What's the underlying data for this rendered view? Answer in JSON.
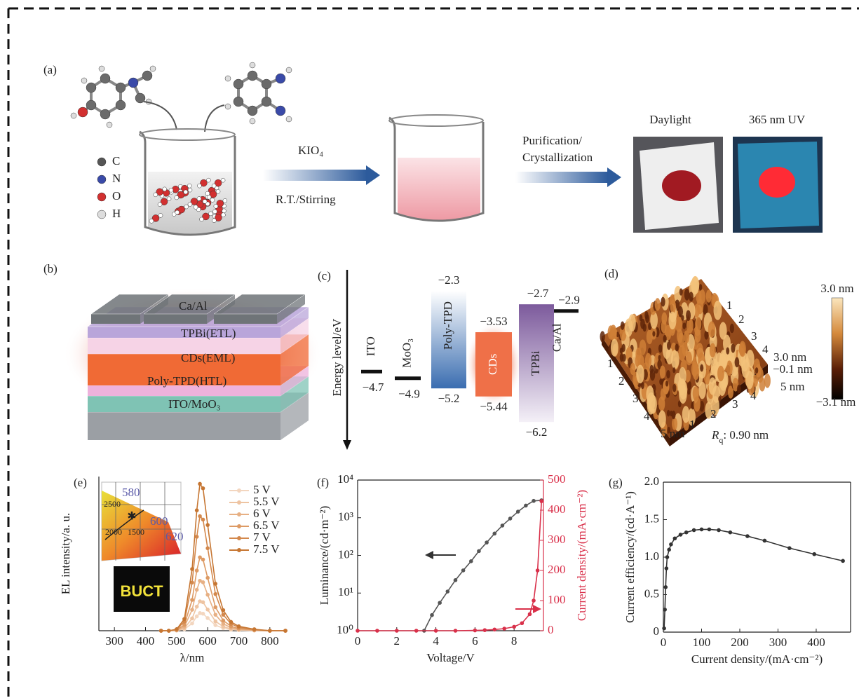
{
  "panel_a": {
    "label": "(a)",
    "legend": [
      "C",
      "N",
      "O",
      "H"
    ],
    "reagent": "KIO₄",
    "condition": "R.T./Stirring",
    "step": [
      "Purification/",
      "Crystallization"
    ],
    "photos": [
      "Daylight",
      "365 nm UV"
    ]
  },
  "panel_b": {
    "label": "(b)",
    "layers": [
      "Ca/Al",
      "TPBi(ETL)",
      "CDs(EML)",
      "Poly-TPD(HTL)",
      "ITO/MoO₃"
    ]
  },
  "panel_c": {
    "label": "(c)",
    "axis": "Energy level/eV",
    "materials": [
      {
        "name": "ITO",
        "color": "#111111",
        "levels": [
          {
            "value": -4.7,
            "label": "−4.7"
          }
        ]
      },
      {
        "name": "MoO₃",
        "color": "#111111",
        "levels": [
          {
            "value": -4.9,
            "label": "−4.9"
          }
        ]
      },
      {
        "name": "Poly-TPD",
        "color": "#3a6db0",
        "levels": [
          {
            "value": -2.3,
            "label": "−2.3"
          },
          {
            "value": -5.2,
            "label": "−5.2"
          }
        ]
      },
      {
        "name": "CDs",
        "color": "#ef7048",
        "levels": [
          {
            "value": -3.53,
            "label": "−3.53"
          },
          {
            "value": -5.44,
            "label": "−5.44"
          }
        ]
      },
      {
        "name": "TPBi",
        "color": "#7c5a9c",
        "levels": [
          {
            "value": -2.7,
            "label": "−2.7"
          },
          {
            "value": -6.2,
            "label": "−6.2"
          }
        ]
      },
      {
        "name": "Ca/Al",
        "color": "#111111",
        "levels": [
          {
            "value": -2.9,
            "label": "−2.9"
          }
        ]
      }
    ]
  },
  "panel_d": {
    "label": "(d)",
    "scale": [
      "3.0 nm",
      "−3.1 nm"
    ],
    "left_edge": [
      "1",
      "2",
      "3",
      "4",
      "5 nm"
    ],
    "front_edge": [
      "1",
      "2",
      "3",
      "4",
      "5 nm"
    ],
    "back_edge": [
      "1",
      "2",
      "3",
      "4"
    ],
    "z_ticks": [
      "3.0 nm",
      "−0.1 nm"
    ],
    "roughness": {
      "symbol": "R",
      "sub": "q",
      "text": ": 0.90 nm"
    }
  },
  "chart_data": [
    {
      "type": "line",
      "label": "(e)",
      "x_label": "λ/nm",
      "y_label": "EL intensity/a. u.",
      "xlim": [
        250,
        850
      ],
      "xticks": [
        300,
        400,
        500,
        600,
        700,
        800
      ],
      "ylim": [
        0,
        1.05
      ],
      "legend": "upper right",
      "x": [
        450,
        475,
        500,
        525,
        550,
        565,
        575,
        585,
        600,
        625,
        650,
        675,
        700,
        750,
        800,
        850
      ],
      "series": [
        {
          "name": "5 V",
          "color": "#f3d6bf",
          "values": [
            0,
            0,
            0.001,
            0.01,
            0.05,
            0.098,
            0.12,
            0.116,
            0.086,
            0.038,
            0.017,
            0.007,
            0.004,
            0.001,
            0,
            0
          ]
        },
        {
          "name": "5.5 V",
          "color": "#eec4a2",
          "values": [
            0,
            0,
            0.002,
            0.016,
            0.084,
            0.164,
            0.2,
            0.194,
            0.144,
            0.064,
            0.028,
            0.012,
            0.006,
            0.002,
            0,
            0
          ]
        },
        {
          "name": "6 V",
          "color": "#e7b084",
          "values": [
            0,
            0,
            0.003,
            0.027,
            0.143,
            0.279,
            0.34,
            0.33,
            0.245,
            0.109,
            0.048,
            0.02,
            0.01,
            0.003,
            0,
            0
          ]
        },
        {
          "name": "6.5 V",
          "color": "#dd9a64",
          "values": [
            0,
            0,
            0.005,
            0.04,
            0.21,
            0.41,
            0.5,
            0.485,
            0.36,
            0.16,
            0.07,
            0.03,
            0.015,
            0.005,
            0,
            0
          ]
        },
        {
          "name": "7 V",
          "color": "#d3884c",
          "values": [
            0,
            0,
            0.008,
            0.062,
            0.328,
            0.64,
            0.78,
            0.757,
            0.562,
            0.25,
            0.109,
            0.047,
            0.023,
            0.008,
            0,
            0
          ]
        },
        {
          "name": "7.5 V",
          "color": "#c67632",
          "values": [
            0,
            0,
            0.01,
            0.08,
            0.42,
            0.82,
            1.0,
            0.97,
            0.72,
            0.32,
            0.14,
            0.06,
            0.03,
            0.01,
            0,
            0
          ]
        }
      ],
      "inset": {
        "wavelengths": [
          "580",
          "600",
          "620"
        ],
        "temperatures": [
          "2500",
          "2000",
          "1500"
        ],
        "photo_text": "BUCT"
      }
    },
    {
      "type": "line",
      "label": "(f)",
      "x_label": "Voltage/V",
      "y_label": "Luminance/(cd·m⁻²)",
      "y2_label": "Current density/(mA·cm⁻²)",
      "box": true,
      "xlim": [
        0,
        9.5
      ],
      "xticks": [
        0,
        2,
        4,
        6,
        8
      ],
      "ylim": [
        1,
        10000
      ],
      "log_y": true,
      "yticks": [
        {
          "value": 1,
          "label": "10⁰"
        },
        {
          "value": 10,
          "label": "10¹"
        },
        {
          "value": 100,
          "label": "10²"
        },
        {
          "value": 1000,
          "label": "10³"
        },
        {
          "value": 10000,
          "label": "10⁴"
        }
      ],
      "y2lim": [
        0,
        500
      ],
      "y2ticks": [
        0,
        100,
        200,
        300,
        400,
        500
      ],
      "series": [
        {
          "color": "#555555",
          "x": [
            3.4,
            3.8,
            4.2,
            4.6,
            5.0,
            5.4,
            5.8,
            6.2,
            6.6,
            7.0,
            7.4,
            7.8,
            8.2,
            8.6,
            9.0,
            9.4
          ],
          "values": [
            1,
            2.6,
            5.5,
            11,
            22,
            40,
            70,
            130,
            220,
            380,
            620,
            950,
            1450,
            2100,
            2800,
            2900
          ]
        },
        {
          "color": "#d9304a",
          "axis": "y2",
          "x": [
            0,
            1,
            2,
            3,
            4,
            5,
            6,
            6.5,
            7,
            7.5,
            8,
            8.4,
            8.8,
            9.0,
            9.2,
            9.4
          ],
          "values": [
            0,
            0,
            0,
            0,
            0,
            0,
            1,
            2,
            4,
            7,
            13,
            25,
            55,
            100,
            200,
            430
          ]
        }
      ]
    },
    {
      "type": "line",
      "label": "(g)",
      "x_label": "Current density/(mA·cm⁻²)",
      "y_label": "Current efficiency/(cd·A⁻¹)",
      "box": true,
      "xlim": [
        0,
        490
      ],
      "xticks": [
        0,
        100,
        200,
        300,
        400
      ],
      "ylim": [
        0,
        2.0
      ],
      "yticks": [
        0,
        0.5,
        {
          "value": 1,
          "label": "1.0"
        },
        1.5,
        {
          "value": 2,
          "label": "2.0"
        }
      ],
      "series": [
        {
          "color": "#333333",
          "x": [
            2,
            4,
            6,
            8,
            10,
            15,
            20,
            30,
            45,
            60,
            80,
            100,
            120,
            145,
            175,
            220,
            265,
            330,
            395,
            470
          ],
          "values": [
            0.05,
            0.3,
            0.6,
            0.85,
            1.0,
            1.1,
            1.17,
            1.25,
            1.3,
            1.33,
            1.36,
            1.37,
            1.37,
            1.36,
            1.33,
            1.28,
            1.22,
            1.12,
            1.04,
            0.95
          ]
        }
      ]
    }
  ]
}
